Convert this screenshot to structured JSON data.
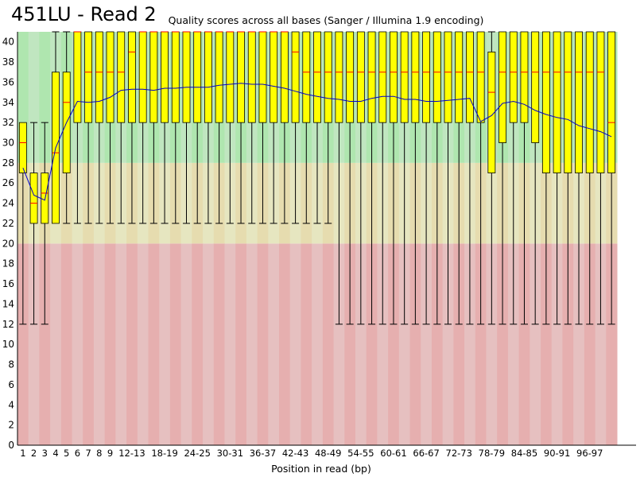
{
  "page_title": "451LU - Read 2",
  "chart_data": {
    "type": "boxplot",
    "title": "Quality scores across all bases (Sanger / Illumina 1.9 encoding)",
    "xlabel": "Position in read (bp)",
    "ylabel": "",
    "ylim": [
      0,
      41
    ],
    "yticks": [
      0,
      2,
      4,
      6,
      8,
      10,
      12,
      14,
      16,
      18,
      20,
      22,
      24,
      26,
      28,
      30,
      32,
      34,
      36,
      38,
      40
    ],
    "quality_bands": [
      {
        "name": "poor",
        "from": 0,
        "to": 20,
        "colors": [
          "#e6afaf",
          "#e6c0c0"
        ]
      },
      {
        "name": "reasonable",
        "from": 20,
        "to": 28,
        "colors": [
          "#e6dcaf",
          "#e6e6c0"
        ]
      },
      {
        "name": "good",
        "from": 28,
        "to": 41,
        "colors": [
          "#afe6af",
          "#c0e6c0"
        ]
      }
    ],
    "colors": {
      "box": "#ffff00",
      "median": "#ff0000",
      "mean_line": "#0000cc",
      "whisker": "#000000"
    },
    "categories": [
      "1",
      "2",
      "3",
      "4",
      "5",
      "6",
      "7",
      "8",
      "9",
      "10-11",
      "12-13",
      "14-15",
      "16-17",
      "18-19",
      "20-21",
      "22-23",
      "24-25",
      "26-27",
      "28-29",
      "30-31",
      "32-33",
      "34-35",
      "36-37",
      "38-39",
      "40-41",
      "42-43",
      "44-45",
      "46-47",
      "48-49",
      "50-51",
      "52-53",
      "54-55",
      "56-57",
      "58-59",
      "60-61",
      "62-63",
      "64-65",
      "66-67",
      "68-69",
      "70-71",
      "72-73",
      "74-75",
      "76-77",
      "78-79",
      "80-81",
      "82-83",
      "84-85",
      "86-87",
      "88-89",
      "90-91",
      "92-93",
      "94-95",
      "96-97",
      "98-99",
      "100"
    ],
    "tick_labels": [
      "1",
      "2",
      "3",
      "4",
      "5",
      "6",
      "7",
      "8",
      "9",
      "12-13",
      "18-19",
      "24-25",
      "30-31",
      "36-37",
      "42-43",
      "48-49",
      "54-55",
      "60-61",
      "66-67",
      "72-73",
      "78-79",
      "84-85",
      "90-91",
      "96-97"
    ],
    "q1": [
      27,
      22,
      22,
      22,
      27,
      32,
      32,
      32,
      32,
      32,
      32,
      32,
      32,
      32,
      32,
      32,
      32,
      32,
      32,
      32,
      32,
      32,
      32,
      32,
      32,
      32,
      32,
      32,
      32,
      32,
      32,
      32,
      32,
      32,
      32,
      32,
      32,
      32,
      32,
      32,
      32,
      32,
      32,
      27,
      30,
      32,
      32,
      30,
      27,
      27,
      27,
      27,
      27,
      27,
      27
    ],
    "median": [
      30,
      24,
      25,
      29,
      34,
      41,
      37,
      37,
      37,
      37,
      39,
      41,
      41,
      41,
      41,
      41,
      41,
      41,
      41,
      41,
      41,
      41,
      41,
      41,
      41,
      39,
      37,
      37,
      37,
      37,
      37,
      37,
      37,
      37,
      37,
      37,
      37,
      37,
      37,
      37,
      37,
      37,
      37,
      35,
      37,
      37,
      37,
      37,
      37,
      37,
      37,
      37,
      37,
      37,
      32
    ],
    "q3": [
      32,
      27,
      27,
      37,
      37,
      41,
      41,
      41,
      41,
      41,
      41,
      41,
      41,
      41,
      41,
      41,
      41,
      41,
      41,
      41,
      41,
      41,
      41,
      41,
      41,
      41,
      41,
      41,
      41,
      41,
      41,
      41,
      41,
      41,
      41,
      41,
      41,
      41,
      41,
      41,
      41,
      41,
      41,
      39,
      41,
      41,
      41,
      41,
      41,
      41,
      41,
      41,
      41,
      41,
      41
    ],
    "whisker_low": [
      12,
      12,
      12,
      22,
      22,
      22,
      22,
      22,
      22,
      22,
      22,
      22,
      22,
      22,
      22,
      22,
      22,
      22,
      22,
      22,
      22,
      22,
      22,
      22,
      22,
      22,
      22,
      22,
      22,
      12,
      12,
      12,
      12,
      12,
      12,
      12,
      12,
      12,
      12,
      12,
      12,
      12,
      12,
      12,
      12,
      12,
      12,
      12,
      12,
      12,
      12,
      12,
      12,
      12,
      12
    ],
    "whisker_high": [
      32,
      32,
      32,
      41,
      41,
      41,
      41,
      41,
      41,
      41,
      41,
      41,
      41,
      41,
      41,
      41,
      41,
      41,
      41,
      41,
      41,
      41,
      41,
      41,
      41,
      41,
      41,
      41,
      41,
      41,
      41,
      41,
      41,
      41,
      41,
      41,
      41,
      41,
      41,
      41,
      41,
      41,
      41,
      41,
      41,
      41,
      41,
      41,
      41,
      41,
      41,
      41,
      41,
      41,
      41
    ],
    "mean": [
      27.5,
      24.8,
      24.3,
      29.5,
      32.0,
      34.1,
      34.0,
      34.1,
      34.5,
      35.2,
      35.3,
      35.3,
      35.2,
      35.4,
      35.4,
      35.5,
      35.5,
      35.5,
      35.7,
      35.8,
      35.9,
      35.8,
      35.8,
      35.6,
      35.4,
      35.1,
      34.8,
      34.6,
      34.4,
      34.3,
      34.1,
      34.1,
      34.4,
      34.6,
      34.6,
      34.3,
      34.3,
      34.1,
      34.1,
      34.2,
      34.3,
      34.4,
      32.1,
      32.7,
      33.9,
      34.1,
      33.8,
      33.2,
      32.8,
      32.5,
      32.3,
      31.7,
      31.4,
      31.1,
      30.6
    ]
  }
}
